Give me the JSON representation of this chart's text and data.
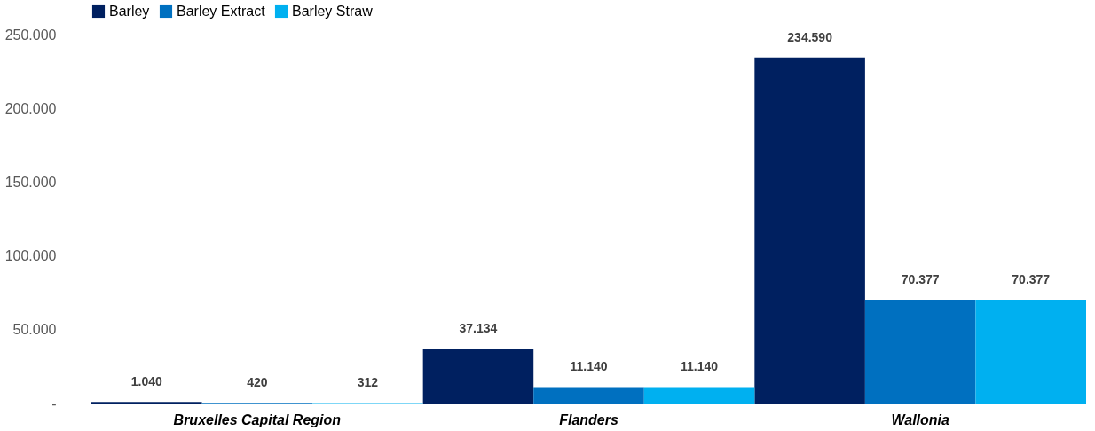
{
  "chart_data": {
    "type": "bar",
    "categories": [
      "Bruxelles Capital Region",
      "Flanders",
      "Wallonia"
    ],
    "series": [
      {
        "name": "Barley",
        "color": "#002060",
        "values": [
          1040,
          37134,
          234590
        ],
        "value_labels": [
          "1.040",
          "37.134",
          "234.590"
        ]
      },
      {
        "name": "Barley Extract",
        "color": "#0070c0",
        "values": [
          420,
          11140,
          70377
        ],
        "value_labels": [
          "420",
          "11.140",
          "70.377"
        ]
      },
      {
        "name": "Barley Straw",
        "color": "#00b0f0",
        "values": [
          312,
          11140,
          70377
        ],
        "value_labels": [
          "312",
          "11.140",
          "70.377"
        ]
      }
    ],
    "ylim": [
      0,
      250000
    ],
    "yticks": [
      {
        "value": 0,
        "label": "-"
      },
      {
        "value": 50000,
        "label": "50.000"
      },
      {
        "value": 100000,
        "label": "100.000"
      },
      {
        "value": 150000,
        "label": "150.000"
      },
      {
        "value": 200000,
        "label": "200.000"
      },
      {
        "value": 250000,
        "label": "250.000"
      }
    ],
    "grid": false,
    "legend": "top"
  }
}
